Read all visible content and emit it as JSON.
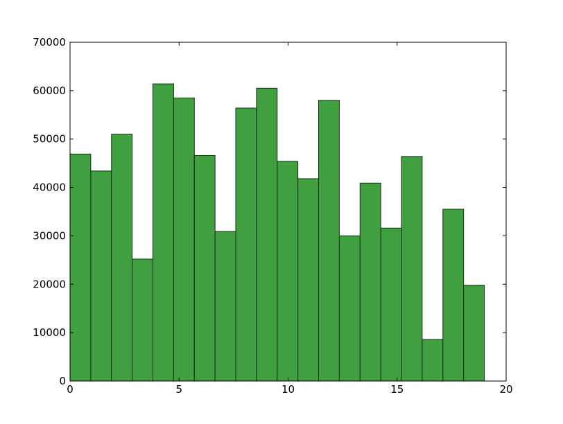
{
  "chart_data": {
    "type": "histogram",
    "bins": [
      0,
      0.95,
      1.9,
      2.85,
      3.8,
      4.75,
      5.7,
      6.65,
      7.6,
      8.55,
      9.5,
      10.45,
      11.4,
      12.35,
      13.3,
      14.25,
      15.2,
      16.15,
      17.1,
      18.05,
      19
    ],
    "values": [
      46900,
      43400,
      51000,
      25200,
      61400,
      58500,
      46600,
      30900,
      56400,
      60500,
      45400,
      41800,
      58000,
      30000,
      40900,
      31600,
      46400,
      8600,
      35500,
      19800
    ],
    "color": "#40a040",
    "xlim": [
      0,
      20
    ],
    "xticks": [
      0,
      5,
      10,
      15,
      20
    ],
    "ylim": [
      0,
      70000
    ],
    "yticks": [
      0,
      10000,
      20000,
      30000,
      40000,
      50000,
      60000,
      70000
    ],
    "grid": false
  }
}
